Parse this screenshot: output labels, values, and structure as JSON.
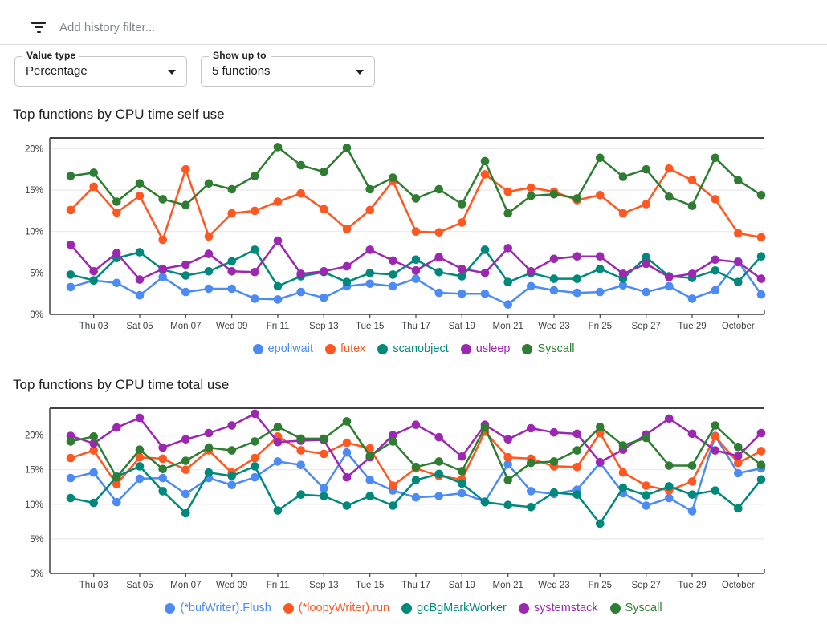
{
  "filter_bar": {
    "placeholder": "Add history filter..."
  },
  "icons": {
    "filter": "filter-list-icon",
    "dropdown_arrow": "caret-down-icon"
  },
  "controls": {
    "value_type": {
      "label": "Value type",
      "value": "Percentage"
    },
    "show_up_to": {
      "label": "Show up to",
      "value": "5 functions"
    }
  },
  "chart_data": [
    {
      "type": "line",
      "title": "Top functions by CPU time self use",
      "xlabel": "",
      "ylabel": "",
      "grid": true,
      "legend_position": "bottom",
      "n_points": 31,
      "ylim": [
        0,
        21.3
      ],
      "y_ticks": [
        0,
        5,
        10,
        15,
        20
      ],
      "y_tick_labels": [
        "0%",
        "5%",
        "10%",
        "15%",
        "20%"
      ],
      "x_tick_labels": [
        "Thu 03",
        "Sat 05",
        "Mon 07",
        "Wed 09",
        "Fri 11",
        "Sep 13",
        "Tue 15",
        "Thu 17",
        "Sat 19",
        "Mon 21",
        "Wed 23",
        "Fri 25",
        "Sep 27",
        "Tue 29",
        "October"
      ],
      "series": [
        {
          "name": "epollwait",
          "color": "#4C8BF4",
          "values": [
            3.3,
            4.1,
            3.8,
            2.3,
            4.5,
            2.7,
            3.1,
            3.1,
            1.9,
            1.8,
            2.7,
            2.0,
            3.4,
            3.7,
            3.4,
            4.3,
            2.6,
            2.5,
            2.5,
            1.2,
            3.4,
            2.9,
            2.6,
            2.7,
            3.5,
            2.7,
            3.4,
            1.9,
            2.9,
            6.4,
            2.4
          ]
        },
        {
          "name": "futex",
          "color": "#FF5722",
          "values": [
            12.6,
            15.4,
            12.3,
            14.3,
            9.0,
            17.5,
            9.4,
            12.2,
            12.5,
            13.6,
            14.6,
            12.7,
            10.3,
            12.6,
            16.1,
            10.0,
            9.9,
            11.1,
            16.9,
            14.8,
            15.3,
            14.8,
            13.8,
            14.4,
            12.2,
            13.3,
            17.6,
            16.2,
            13.9,
            9.8,
            9.3
          ]
        },
        {
          "name": "scanobject",
          "color": "#00897B",
          "values": [
            4.8,
            4.1,
            6.8,
            7.5,
            5.4,
            4.7,
            5.2,
            6.4,
            7.8,
            3.4,
            4.6,
            5.1,
            3.9,
            5.0,
            4.8,
            6.6,
            5.1,
            4.6,
            7.8,
            3.9,
            5.0,
            4.3,
            4.3,
            5.5,
            4.3,
            6.9,
            4.6,
            4.4,
            5.3,
            3.9,
            7.0
          ]
        },
        {
          "name": "usleep",
          "color": "#9C27B0",
          "values": [
            8.4,
            5.2,
            7.4,
            4.2,
            5.5,
            6.0,
            7.3,
            5.2,
            5.1,
            8.9,
            4.9,
            5.2,
            5.8,
            7.8,
            6.5,
            5.3,
            6.9,
            5.5,
            5.0,
            8.0,
            5.2,
            6.7,
            7.0,
            7.0,
            4.9,
            6.1,
            4.5,
            4.9,
            6.6,
            6.3,
            4.3
          ]
        },
        {
          "name": "Syscall",
          "color": "#2E7D32",
          "values": [
            16.7,
            17.1,
            13.6,
            15.8,
            13.9,
            13.2,
            15.8,
            15.1,
            16.7,
            20.2,
            18.0,
            17.2,
            20.1,
            15.1,
            16.5,
            14.0,
            15.1,
            13.3,
            18.5,
            12.2,
            14.3,
            14.5,
            14.0,
            18.9,
            16.6,
            17.5,
            14.2,
            13.1,
            18.9,
            16.2,
            14.4
          ]
        }
      ]
    },
    {
      "type": "line",
      "title": "Top functions by CPU time total use",
      "xlabel": "",
      "ylabel": "",
      "grid": true,
      "legend_position": "bottom",
      "n_points": 31,
      "ylim": [
        0,
        23.9
      ],
      "y_ticks": [
        0,
        5,
        10,
        15,
        20
      ],
      "y_tick_labels": [
        "0%",
        "5%",
        "10%",
        "15%",
        "20%"
      ],
      "x_tick_labels": [
        "Thu 03",
        "Sat 05",
        "Mon 07",
        "Wed 09",
        "Fri 11",
        "Sep 13",
        "Tue 15",
        "Thu 17",
        "Sat 19",
        "Mon 21",
        "Wed 23",
        "Fri 25",
        "Sep 27",
        "Tue 29",
        "October"
      ],
      "series": [
        {
          "name": "(*bufWriter).Flush",
          "color": "#4C8BF4",
          "values": [
            13.8,
            14.6,
            10.3,
            13.7,
            13.8,
            11.5,
            13.8,
            12.8,
            13.9,
            16.2,
            15.7,
            12.3,
            17.5,
            13.5,
            12.0,
            11.0,
            11.2,
            11.6,
            10.4,
            15.8,
            11.9,
            11.5,
            12.1,
            16.0,
            11.6,
            9.8,
            10.9,
            9.0,
            19.9,
            14.5,
            15.2
          ]
        },
        {
          "name": "(*loopyWriter).run",
          "color": "#FF5722",
          "values": [
            16.7,
            17.8,
            12.9,
            16.8,
            16.6,
            15.0,
            17.8,
            14.6,
            16.7,
            19.8,
            17.8,
            17.3,
            18.9,
            18.1,
            12.7,
            15.2,
            14.1,
            13.6,
            20.5,
            16.8,
            16.6,
            15.5,
            15.4,
            20.3,
            14.6,
            12.7,
            12.0,
            13.3,
            19.8,
            16.0,
            17.7
          ]
        },
        {
          "name": "gcBgMarkWorker",
          "color": "#00897B",
          "values": [
            10.9,
            10.2,
            14.0,
            15.5,
            11.9,
            8.7,
            14.6,
            14.1,
            15.5,
            9.1,
            11.4,
            11.2,
            9.8,
            11.2,
            9.8,
            13.5,
            14.4,
            13.0,
            10.3,
            9.9,
            9.6,
            11.7,
            11.4,
            7.2,
            12.4,
            11.3,
            12.6,
            11.4,
            12.0,
            9.4,
            13.6
          ]
        },
        {
          "name": "systemstack",
          "color": "#9C27B0",
          "values": [
            19.9,
            18.8,
            21.1,
            22.5,
            18.2,
            19.4,
            20.3,
            21.4,
            23.1,
            19.0,
            19.2,
            19.3,
            13.9,
            16.8,
            20.0,
            21.5,
            19.7,
            16.9,
            21.5,
            19.4,
            21.0,
            20.4,
            20.2,
            16.1,
            17.9,
            20.1,
            22.4,
            20.2,
            17.8,
            17.0,
            20.3
          ]
        },
        {
          "name": "Syscall",
          "color": "#2E7D32",
          "values": [
            19.1,
            19.8,
            13.9,
            17.9,
            15.1,
            16.3,
            18.2,
            17.8,
            19.1,
            21.2,
            19.5,
            19.5,
            22.0,
            17.0,
            19.1,
            15.4,
            16.2,
            14.8,
            21.1,
            13.5,
            16.0,
            16.2,
            17.8,
            21.2,
            18.5,
            19.6,
            15.6,
            15.6,
            21.4,
            18.3,
            15.7
          ]
        }
      ]
    }
  ]
}
